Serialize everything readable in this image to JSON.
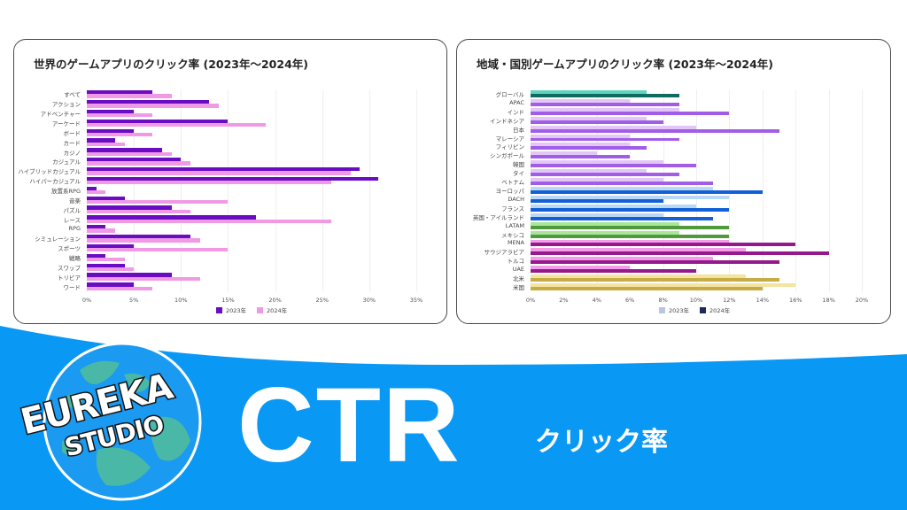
{
  "left_chart": {
    "title": "世界のゲームアプリのクリック率 (2023年〜2024年)",
    "legend": [
      {
        "label": "2023年",
        "color": "#6a0dc2"
      },
      {
        "label": "2024年",
        "color": "#f09ae6"
      }
    ],
    "ticks": [
      "0%",
      "5%",
      "10%",
      "15%",
      "20%",
      "25%",
      "30%",
      "35%"
    ]
  },
  "right_chart": {
    "title": "地域・国別ゲームアプリのクリック率 (2023年〜2024年)",
    "legend": [
      {
        "label": "2023年",
        "color": "#b8c4e0"
      },
      {
        "label": "2024年",
        "color": "#1f2a5c"
      }
    ],
    "ticks": [
      "0%",
      "2%",
      "4%",
      "6%",
      "8%",
      "10%",
      "12%",
      "14%",
      "16%",
      "18%",
      "20%"
    ]
  },
  "banner": {
    "title": "CTR",
    "subtitle": "クリック率",
    "logo_line1": "EUREKA",
    "logo_line2": "STUDIO",
    "bg_color": "#0a98f5"
  },
  "chart_data": [
    {
      "type": "bar",
      "orientation": "horizontal",
      "title": "世界のゲームアプリのクリック率 (2023年〜2024年)",
      "xlabel": "",
      "ylabel": "",
      "xlim": [
        0,
        35
      ],
      "x_unit": "%",
      "grid": true,
      "legend_position": "bottom",
      "categories": [
        "すべて",
        "アクション",
        "アドベンチャー",
        "アーケード",
        "ボード",
        "カード",
        "カジノ",
        "カジュアル",
        "ハイブリッドカジュアル",
        "ハイパーカジュアル",
        "放置系RPG",
        "音楽",
        "パズル",
        "レース",
        "RPG",
        "シミュレーション",
        "スポーツ",
        "戦略",
        "スワップ",
        "トリビア",
        "ワード"
      ],
      "series": [
        {
          "name": "2023年",
          "color": "#6a0dc2",
          "values": [
            7,
            13,
            5,
            15,
            5,
            3,
            8,
            10,
            29,
            31,
            1,
            4,
            9,
            18,
            2,
            11,
            5,
            2,
            4,
            9,
            5
          ]
        },
        {
          "name": "2024年",
          "color": "#f09ae6",
          "values": [
            9,
            14,
            7,
            19,
            7,
            4,
            9,
            11,
            28,
            26,
            2,
            15,
            11,
            26,
            3,
            12,
            15,
            4,
            5,
            12,
            7
          ]
        }
      ]
    },
    {
      "type": "bar",
      "orientation": "horizontal",
      "title": "地域・国別ゲームアプリのクリック率 (2023年〜2024年)",
      "xlabel": "",
      "ylabel": "",
      "xlim": [
        0,
        20
      ],
      "x_unit": "%",
      "grid": true,
      "legend_position": "bottom",
      "categories": [
        "グローバル",
        "APAC",
        "インド",
        "インドネシア",
        "日本",
        "マレーシア",
        "フィリピン",
        "シンガポール",
        "韓国",
        "タイ",
        "ベトナム",
        "ヨーロッパ",
        "DACH",
        "フランス",
        "英国・アイルランド",
        "LATAM",
        "メキシコ",
        "MENA",
        "サウジアラビア",
        "トルコ",
        "UAE",
        "北米",
        "米国"
      ],
      "group_colors": [
        {
          "light": "#5fd3c0",
          "dark": "#0e6b5e"
        },
        {
          "light": "#e3c6f7",
          "dark": "#a25de6"
        },
        {
          "light": "#e3c6f7",
          "dark": "#a25de6"
        },
        {
          "light": "#e3c6f7",
          "dark": "#a25de6"
        },
        {
          "light": "#e3c6f7",
          "dark": "#a25de6"
        },
        {
          "light": "#e3c6f7",
          "dark": "#a25de6"
        },
        {
          "light": "#e3c6f7",
          "dark": "#a25de6"
        },
        {
          "light": "#e3c6f7",
          "dark": "#a25de6"
        },
        {
          "light": "#e3c6f7",
          "dark": "#a25de6"
        },
        {
          "light": "#e3c6f7",
          "dark": "#a25de6"
        },
        {
          "light": "#e3c6f7",
          "dark": "#a25de6"
        },
        {
          "light": "#b9d8f7",
          "dark": "#1360d6"
        },
        {
          "light": "#b9d8f7",
          "dark": "#1360d6"
        },
        {
          "light": "#b9d8f7",
          "dark": "#1360d6"
        },
        {
          "light": "#b9d8f7",
          "dark": "#1360d6"
        },
        {
          "light": "#a8e69a",
          "dark": "#4f9a3a"
        },
        {
          "light": "#a8e69a",
          "dark": "#4f9a3a"
        },
        {
          "light": "#f39ce8",
          "dark": "#93198c"
        },
        {
          "light": "#f39ce8",
          "dark": "#93198c"
        },
        {
          "light": "#f39ce8",
          "dark": "#93198c"
        },
        {
          "light": "#f39ce8",
          "dark": "#93198c"
        },
        {
          "light": "#f5e3a0",
          "dark": "#c7ab45"
        },
        {
          "light": "#f5e3a0",
          "dark": "#c7ab45"
        }
      ],
      "series": [
        {
          "name": "2023年",
          "values": [
            7,
            6,
            9,
            7,
            10,
            6,
            6,
            4,
            8,
            7,
            8,
            11,
            12,
            10,
            8,
            9,
            9,
            12,
            13,
            11,
            6,
            13,
            16
          ]
        },
        {
          "name": "2024年",
          "values": [
            9,
            9,
            12,
            8,
            15,
            9,
            7,
            6,
            10,
            9,
            11,
            14,
            8,
            12,
            11,
            12,
            12,
            16,
            18,
            15,
            10,
            15,
            14
          ]
        }
      ]
    }
  ]
}
